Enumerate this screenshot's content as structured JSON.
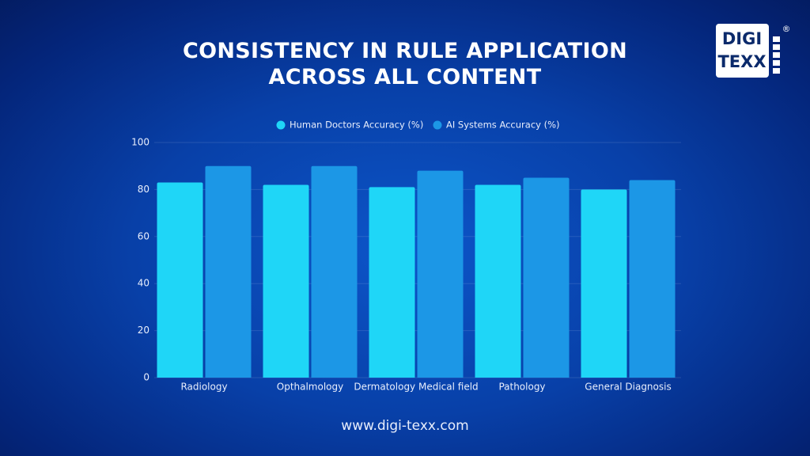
{
  "chart_data": {
    "type": "bar",
    "title": "CONSISTENCY IN RULE APPLICATION ACROSS ALL CONTENT",
    "categories": [
      "Radiology",
      "Opthalmology",
      "Dermatology Medical field",
      "Pathology",
      "General Diagnosis"
    ],
    "series": [
      {
        "name": "Human Doctors Accuracy (%)",
        "color": "#1fd6f7",
        "values": [
          83,
          82,
          81,
          82,
          80
        ]
      },
      {
        "name": "AI Systems Accuracy (%)",
        "color": "#1c97e6",
        "values": [
          90,
          90,
          88,
          85,
          84
        ]
      }
    ],
    "ylim": [
      0,
      100
    ],
    "yticks": [
      0,
      20,
      40,
      60,
      80,
      100
    ],
    "grid": true,
    "legend": "top"
  },
  "logo": {
    "lines": [
      "DIGI",
      "TEXX"
    ],
    "mark": "®"
  },
  "footer": "www.digi-texx.com"
}
